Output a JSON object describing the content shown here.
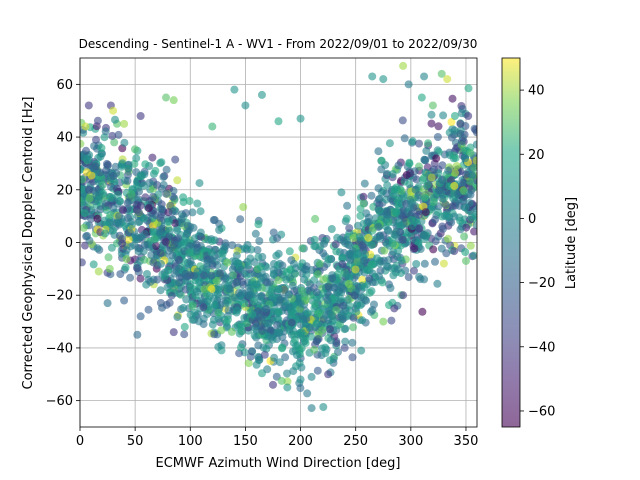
{
  "chart_data": {
    "type": "scatter",
    "title": "Descending - Sentinel-1 A - WV1 - From 2022/09/01 to 2022/09/30",
    "xlabel": "ECMWF Azimuth Wind Direction [deg]",
    "ylabel": "Corrected Geophysical Doppler Centroid [Hz]",
    "xlim": [
      0,
      360
    ],
    "ylim": [
      -70,
      70
    ],
    "xticks": [
      0,
      50,
      100,
      150,
      200,
      250,
      300,
      350
    ],
    "yticks": [
      -60,
      -40,
      -20,
      0,
      20,
      40,
      60
    ],
    "grid": true,
    "colorbar": {
      "label": "Latitude [deg]",
      "colormap": "viridis",
      "range": [
        -65,
        50
      ],
      "ticks": [
        -60,
        -40,
        -20,
        0,
        20,
        40
      ],
      "alpha": 0.6
    },
    "trend": {
      "description": "V-shaped relation: doppler near +20 Hz at 0 and 360 deg, minimum near -25 Hz around 190 deg",
      "samples": [
        {
          "x": 0,
          "y": 22
        },
        {
          "x": 50,
          "y": 12
        },
        {
          "x": 100,
          "y": -8
        },
        {
          "x": 150,
          "y": -22
        },
        {
          "x": 190,
          "y": -26
        },
        {
          "x": 230,
          "y": -20
        },
        {
          "x": 270,
          "y": 0
        },
        {
          "x": 320,
          "y": 18
        },
        {
          "x": 360,
          "y": 24
        }
      ],
      "spread_hz": 12
    },
    "series": [
      {
        "points": [
          {
            "x": 8,
            "y": 52,
            "lat": -40
          },
          {
            "x": 28,
            "y": 52,
            "lat": -40
          },
          {
            "x": 30,
            "y": 50,
            "lat": 45
          },
          {
            "x": 55,
            "y": 48,
            "lat": -40
          },
          {
            "x": 40,
            "y": 45,
            "lat": 40
          },
          {
            "x": 5,
            "y": 44,
            "lat": 45
          },
          {
            "x": 85,
            "y": 54,
            "lat": 35
          },
          {
            "x": 78,
            "y": 55,
            "lat": 30
          },
          {
            "x": 140,
            "y": 58,
            "lat": 10
          },
          {
            "x": 165,
            "y": 56,
            "lat": 10
          },
          {
            "x": 150,
            "y": 52,
            "lat": 5
          },
          {
            "x": 200,
            "y": 47,
            "lat": 10
          },
          {
            "x": 180,
            "y": 46,
            "lat": 20
          },
          {
            "x": 120,
            "y": 44,
            "lat": 25
          },
          {
            "x": 265,
            "y": 63,
            "lat": 10
          },
          {
            "x": 275,
            "y": 62,
            "lat": 10
          },
          {
            "x": 293,
            "y": 67,
            "lat": 40
          },
          {
            "x": 312,
            "y": 63,
            "lat": 0
          },
          {
            "x": 328,
            "y": 64,
            "lat": 30
          },
          {
            "x": 333,
            "y": 62,
            "lat": 45
          },
          {
            "x": 298,
            "y": 60,
            "lat": -5
          },
          {
            "x": 310,
            "y": 55,
            "lat": 20
          },
          {
            "x": 320,
            "y": 52,
            "lat": 30
          },
          {
            "x": 340,
            "y": 48,
            "lat": 20
          },
          {
            "x": 345,
            "y": 45,
            "lat": -40
          },
          {
            "x": 352,
            "y": 48,
            "lat": -40
          },
          {
            "x": 17,
            "y": -11,
            "lat": 40
          },
          {
            "x": 27,
            "y": -10,
            "lat": 35
          },
          {
            "x": 25,
            "y": -23,
            "lat": -10
          },
          {
            "x": 40,
            "y": -22,
            "lat": -20
          },
          {
            "x": 55,
            "y": -28,
            "lat": -20
          },
          {
            "x": 52,
            "y": -35,
            "lat": -15
          },
          {
            "x": 85,
            "y": -34,
            "lat": -40
          },
          {
            "x": 95,
            "y": -32,
            "lat": 20
          },
          {
            "x": 175,
            "y": -54,
            "lat": -40
          },
          {
            "x": 188,
            "y": -55,
            "lat": 10
          },
          {
            "x": 200,
            "y": -52,
            "lat": 5
          },
          {
            "x": 210,
            "y": -51,
            "lat": 0
          },
          {
            "x": 225,
            "y": -50,
            "lat": -40
          },
          {
            "x": 240,
            "y": -40,
            "lat": -30
          },
          {
            "x": 255,
            "y": -41,
            "lat": 5
          },
          {
            "x": 285,
            "y": -25,
            "lat": -40
          },
          {
            "x": 275,
            "y": -30,
            "lat": 35
          },
          {
            "x": 293,
            "y": -20,
            "lat": -40
          },
          {
            "x": 350,
            "y": -7,
            "lat": 30
          },
          {
            "x": 357,
            "y": -5,
            "lat": 10
          },
          {
            "x": 345,
            "y": 5,
            "lat": -10
          },
          {
            "x": 330,
            "y": -8,
            "lat": 45
          }
        ]
      }
    ]
  }
}
